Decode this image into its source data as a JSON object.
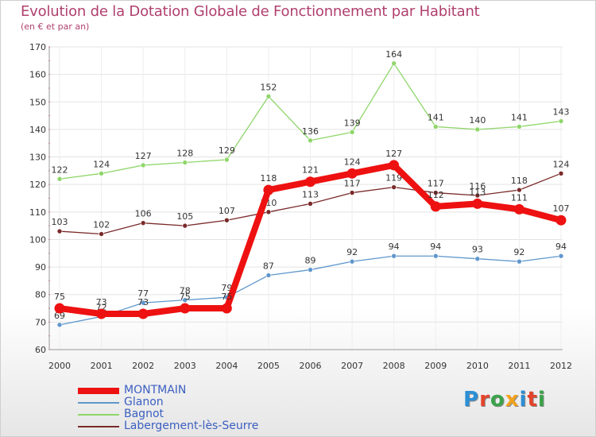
{
  "header": {
    "title": "Evolution de la Dotation Globale de Fonctionnement par Habitant",
    "subtitle": "(en € et par an)"
  },
  "logo": {
    "text": "Proxiti",
    "letter_colors": [
      "#2b8fd6",
      "#e4432b",
      "#3aa34a",
      "#f2a21c",
      "#2b8fd6",
      "#e4432b",
      "#3aa34a"
    ]
  },
  "chart_data": {
    "type": "line",
    "x": [
      "2000",
      "2001",
      "2002",
      "2003",
      "2004",
      "2005",
      "2006",
      "2007",
      "2008",
      "2009",
      "2010",
      "2011",
      "2012"
    ],
    "ylim": [
      60,
      170
    ],
    "yticks": [
      60,
      70,
      80,
      90,
      100,
      110,
      120,
      130,
      140,
      150,
      160,
      170
    ],
    "grid": true,
    "legend_position": "bottom-left",
    "series": [
      {
        "name": "Bagnot",
        "color": "#8fd66a",
        "values": [
          122,
          124,
          127,
          128,
          129,
          152,
          136,
          139,
          164,
          141,
          140,
          141,
          143
        ],
        "thick": false
      },
      {
        "name": "Labergement-lès-Seurre",
        "color": "#7a2a2a",
        "values": [
          103,
          102,
          106,
          105,
          107,
          110,
          113,
          117,
          119,
          117,
          116,
          118,
          124
        ],
        "thick": false
      },
      {
        "name": "Glanon",
        "color": "#5f97cc",
        "values": [
          69,
          72,
          77,
          78,
          79,
          87,
          89,
          92,
          94,
          94,
          93,
          92,
          94
        ],
        "thick": false
      },
      {
        "name": "MONTMAIN",
        "color": "#ee1111",
        "values": [
          75,
          73,
          73,
          75,
          75,
          118,
          121,
          124,
          127,
          112,
          113,
          111,
          107
        ],
        "thick": true
      }
    ],
    "legend_order": [
      "MONTMAIN",
      "Glanon",
      "Bagnot",
      "Labergement-lès-Seurre"
    ]
  }
}
